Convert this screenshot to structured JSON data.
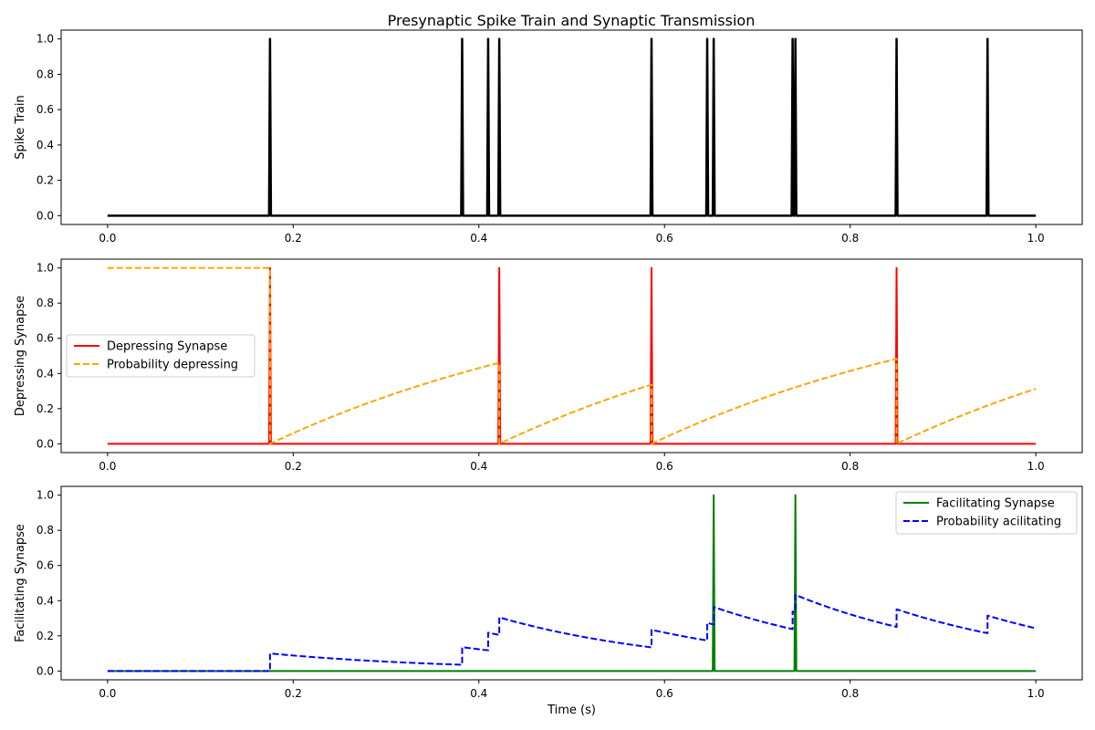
{
  "figure": {
    "title": "Presynaptic Spike Train and Synaptic Transmission"
  },
  "chart_data": [
    {
      "type": "line",
      "ylabel": "Spike Train",
      "xlabel": "",
      "xlim": [
        -0.05,
        1.05
      ],
      "ylim": [
        -0.05,
        1.05
      ],
      "xticks": [
        "0.0",
        "0.2",
        "0.4",
        "0.6",
        "0.8",
        "1.0"
      ],
      "yticks": [
        "0.0",
        "0.2",
        "0.4",
        "0.6",
        "0.8",
        "1.0"
      ],
      "legend": null,
      "series": [
        {
          "kind": "spikes",
          "color": "#000000",
          "dash": "solid",
          "values": [
            0.175,
            0.382,
            0.41,
            0.422,
            0.586,
            0.646,
            0.653,
            0.738,
            0.741,
            0.85,
            0.948
          ]
        }
      ]
    },
    {
      "type": "line",
      "ylabel": "Depressing Synapse",
      "xlabel": "",
      "xlim": [
        -0.05,
        1.05
      ],
      "ylim": [
        -0.05,
        1.05
      ],
      "xticks": [
        "0.0",
        "0.2",
        "0.4",
        "0.6",
        "0.8",
        "1.0"
      ],
      "yticks": [
        "0.0",
        "0.2",
        "0.4",
        "0.6",
        "0.8",
        "1.0"
      ],
      "legend": "center-left",
      "series": [
        {
          "name": "Depressing Synapse",
          "kind": "spikes",
          "color": "#ff0000",
          "dash": "solid",
          "values": [
            0.175,
            0.422,
            0.586,
            0.85
          ]
        },
        {
          "name": "Probability depressing",
          "kind": "recovery",
          "color": "#ffa500",
          "dash": "dashed",
          "initial": 1.0,
          "tau": 0.4,
          "spikes": [
            0.175,
            0.422,
            0.586,
            0.85
          ]
        }
      ]
    },
    {
      "type": "line",
      "ylabel": "Facilitating Synapse",
      "xlabel": "Time (s)",
      "xlim": [
        -0.05,
        1.05
      ],
      "ylim": [
        -0.05,
        1.05
      ],
      "xticks": [
        "0.0",
        "0.2",
        "0.4",
        "0.6",
        "0.8",
        "1.0"
      ],
      "yticks": [
        "0.0",
        "0.2",
        "0.4",
        "0.6",
        "0.8",
        "1.0"
      ],
      "legend": "top-right",
      "series": [
        {
          "name": "Facilitating Synapse",
          "kind": "spikes",
          "color": "#008000",
          "dash": "solid",
          "values": [
            0.653,
            0.741
          ]
        },
        {
          "name": "Probability acilitating",
          "kind": "facilitation",
          "color": "#0000ff",
          "dash": "dashed",
          "initial": 0.0,
          "tau": 0.2,
          "increment": 0.1,
          "spikes": [
            0.175,
            0.382,
            0.41,
            0.422,
            0.586,
            0.646,
            0.653,
            0.738,
            0.741,
            0.85,
            0.948
          ]
        }
      ]
    }
  ]
}
